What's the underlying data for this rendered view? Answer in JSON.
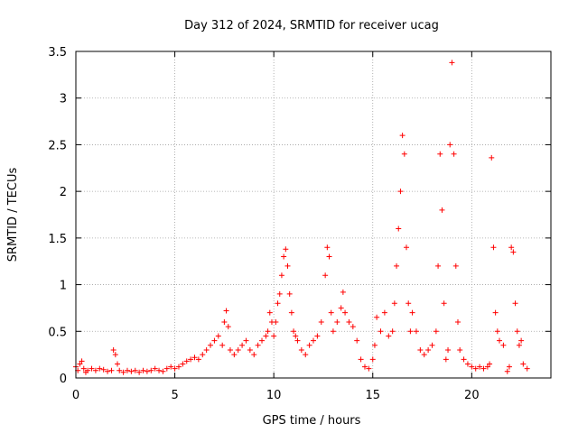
{
  "chart_data": {
    "type": "scatter",
    "title": "Day 312 of 2024, SRMTID for receiver ucag",
    "xlabel": "GPS time / hours",
    "ylabel": "SRMTID / TECUs",
    "xlim": [
      0,
      24
    ],
    "ylim": [
      0,
      3.5
    ],
    "xticks": [
      0,
      5,
      10,
      15,
      20
    ],
    "xtick_labels": [
      "0",
      "5",
      "10",
      "15",
      "20"
    ],
    "yticks": [
      0,
      0.5,
      1,
      1.5,
      2,
      2.5,
      3,
      3.5
    ],
    "ytick_labels": [
      "0",
      "0.5",
      "1",
      "1.5",
      "2",
      "2.5",
      "3",
      "3.5"
    ],
    "grid": true,
    "marker": "+",
    "series": [
      {
        "name": "SRMTID",
        "color": "#ff0000",
        "x": [
          0.0,
          0.1,
          0.2,
          0.3,
          0.4,
          0.5,
          0.6,
          0.8,
          1.0,
          1.2,
          1.4,
          1.6,
          1.8,
          1.9,
          2.0,
          2.1,
          2.2,
          2.4,
          2.6,
          2.8,
          3.0,
          3.2,
          3.4,
          3.6,
          3.8,
          4.0,
          4.2,
          4.4,
          4.6,
          4.8,
          5.0,
          5.2,
          5.4,
          5.6,
          5.8,
          6.0,
          6.2,
          6.4,
          6.6,
          6.8,
          7.0,
          7.2,
          7.4,
          7.5,
          7.6,
          7.7,
          7.8,
          8.0,
          8.2,
          8.4,
          8.6,
          8.8,
          9.0,
          9.2,
          9.4,
          9.6,
          9.7,
          9.8,
          9.9,
          10.0,
          10.1,
          10.2,
          10.3,
          10.4,
          10.5,
          10.6,
          10.7,
          10.8,
          10.9,
          11.0,
          11.1,
          11.2,
          11.4,
          11.6,
          11.8,
          12.0,
          12.2,
          12.4,
          12.6,
          12.7,
          12.8,
          12.9,
          13.0,
          13.2,
          13.4,
          13.5,
          13.6,
          13.8,
          14.0,
          14.2,
          14.4,
          14.6,
          14.8,
          15.0,
          15.1,
          15.2,
          15.4,
          15.6,
          15.8,
          16.0,
          16.1,
          16.2,
          16.3,
          16.4,
          16.5,
          16.6,
          16.7,
          16.8,
          16.9,
          17.0,
          17.2,
          17.4,
          17.6,
          17.8,
          18.0,
          18.2,
          18.3,
          18.4,
          18.5,
          18.6,
          18.7,
          18.8,
          18.9,
          19.0,
          19.1,
          19.2,
          19.3,
          19.4,
          19.6,
          19.8,
          20.0,
          20.2,
          20.4,
          20.6,
          20.8,
          20.9,
          21.0,
          21.1,
          21.2,
          21.3,
          21.4,
          21.6,
          21.8,
          21.9,
          22.0,
          22.1,
          22.2,
          22.3,
          22.4,
          22.5,
          22.6,
          22.8
        ],
        "y": [
          0.12,
          0.08,
          0.15,
          0.18,
          0.1,
          0.06,
          0.08,
          0.1,
          0.08,
          0.1,
          0.09,
          0.07,
          0.08,
          0.3,
          0.25,
          0.15,
          0.08,
          0.06,
          0.08,
          0.07,
          0.08,
          0.06,
          0.08,
          0.07,
          0.08,
          0.1,
          0.08,
          0.07,
          0.1,
          0.12,
          0.1,
          0.12,
          0.15,
          0.18,
          0.2,
          0.22,
          0.2,
          0.25,
          0.3,
          0.35,
          0.4,
          0.45,
          0.35,
          0.6,
          0.72,
          0.55,
          0.3,
          0.25,
          0.3,
          0.35,
          0.4,
          0.3,
          0.25,
          0.35,
          0.4,
          0.45,
          0.5,
          0.7,
          0.6,
          0.45,
          0.6,
          0.8,
          0.9,
          1.1,
          1.3,
          1.38,
          1.2,
          0.9,
          0.7,
          0.5,
          0.45,
          0.4,
          0.3,
          0.25,
          0.35,
          0.4,
          0.45,
          0.6,
          1.1,
          1.4,
          1.3,
          0.7,
          0.5,
          0.6,
          0.75,
          0.92,
          0.7,
          0.6,
          0.55,
          0.4,
          0.2,
          0.12,
          0.1,
          0.2,
          0.35,
          0.65,
          0.5,
          0.7,
          0.45,
          0.5,
          0.8,
          1.2,
          1.6,
          2.0,
          2.6,
          2.4,
          1.4,
          0.8,
          0.5,
          0.7,
          0.5,
          0.3,
          0.25,
          0.3,
          0.35,
          0.5,
          1.2,
          2.4,
          1.8,
          0.8,
          0.2,
          0.3,
          2.5,
          3.38,
          2.4,
          1.2,
          0.6,
          0.3,
          0.2,
          0.15,
          0.12,
          0.1,
          0.12,
          0.1,
          0.12,
          0.15,
          2.36,
          1.4,
          0.7,
          0.5,
          0.4,
          0.35,
          0.07,
          0.12,
          1.4,
          1.35,
          0.8,
          0.5,
          0.35,
          0.4,
          0.15,
          0.1
        ]
      }
    ]
  }
}
